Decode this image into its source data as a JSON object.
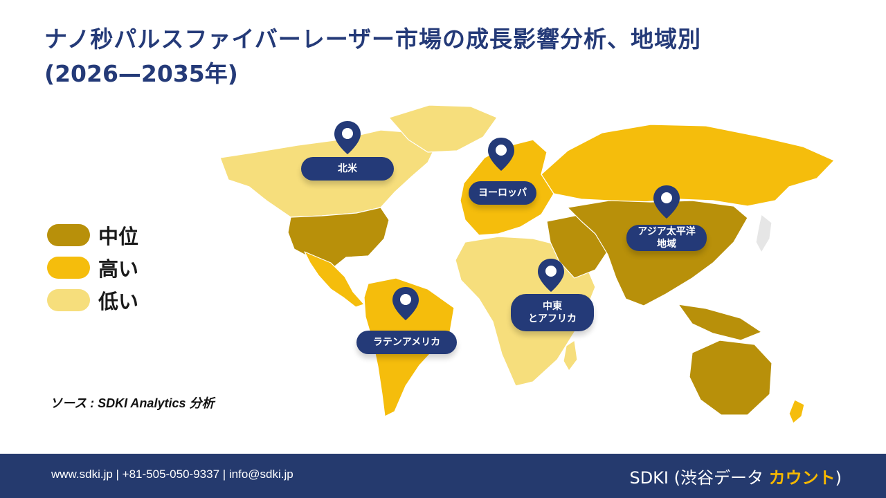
{
  "title": {
    "line1": "ナノ秒パルスファイバーレーザー市場の成長影響分析、地域別",
    "line2": "(2026—2035年)"
  },
  "legend": {
    "items": [
      {
        "label": "中位",
        "color": "#b8900a"
      },
      {
        "label": "高い",
        "color": "#f5bd0c"
      },
      {
        "label": "低い",
        "color": "#f6de7c"
      }
    ]
  },
  "regions": {
    "north_america": "北米",
    "europe": "ヨーロッパ",
    "asia_pacific_line1": "アジア太平洋",
    "asia_pacific_line2": "地域",
    "middle_east_line1": "中東",
    "middle_east_line2": "とアフリカ",
    "latin_america": "ラテンアメリカ"
  },
  "source": "ソース : SDKI Analytics 分析",
  "footer": {
    "contact": "www.sdki.jp | +81-505-050-9337 | info@sdki.jp",
    "brand_prefix": "SDKI (渋谷データ ",
    "brand_accent": "カウント",
    "brand_suffix": ")"
  },
  "colors": {
    "title": "#243a78",
    "pin": "#243a78",
    "medium": "#b8900a",
    "high": "#f5bd0c",
    "low": "#f6de7c",
    "footer": "#253a6e",
    "accent": "#f5b800"
  }
}
